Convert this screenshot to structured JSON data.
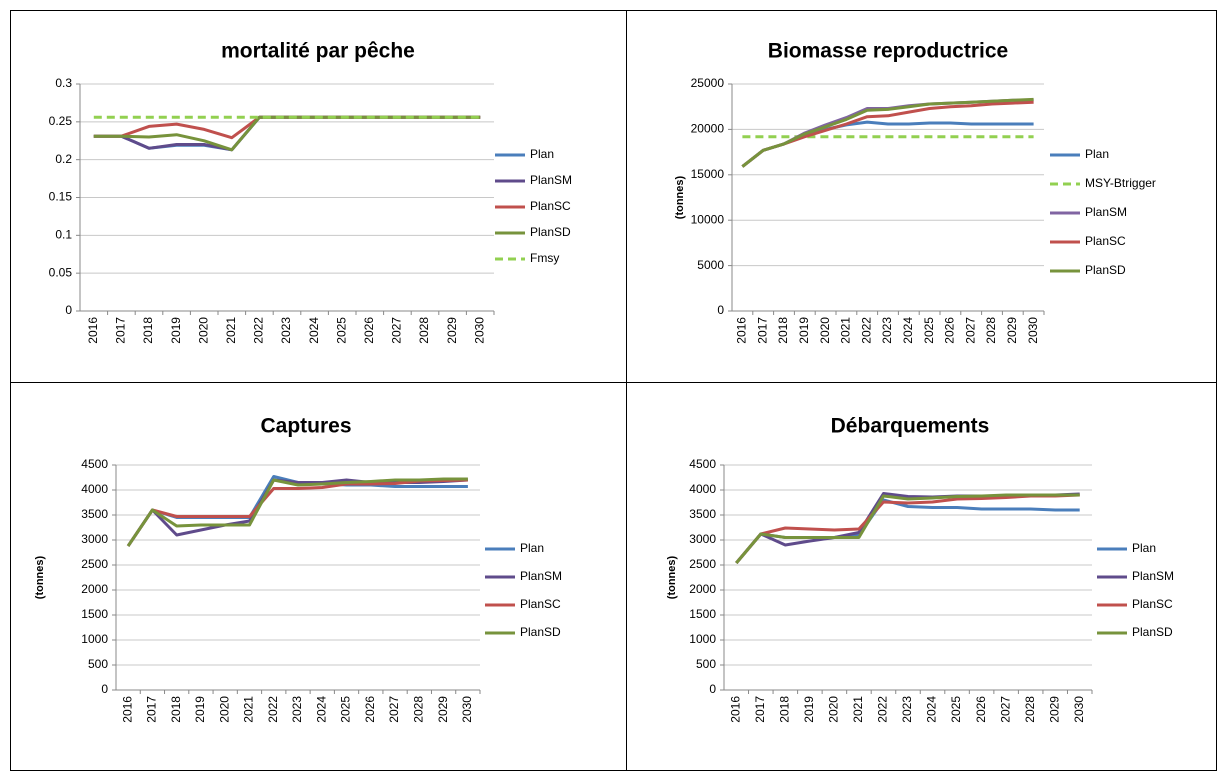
{
  "chart_data": [
    {
      "type": "line",
      "title": "mortalité par pêche",
      "categories": [
        "2016",
        "2017",
        "2018",
        "2019",
        "2020",
        "2021",
        "2022",
        "2023",
        "2024",
        "2025",
        "2026",
        "2027",
        "2028",
        "2029",
        "2030"
      ],
      "ylim": [
        0,
        0.3
      ],
      "yticks": [
        0,
        0.05,
        0.1,
        0.15,
        0.2,
        0.25,
        0.3
      ],
      "grid": true,
      "legend": "right",
      "series": [
        {
          "name": "Plan",
          "color": "#4a7ebb",
          "values": [
            0.231,
            0.231,
            0.215,
            0.219,
            0.219,
            0.213,
            0.256,
            0.256,
            0.256,
            0.256,
            0.256,
            0.256,
            0.256,
            0.256,
            0.256
          ]
        },
        {
          "name": "PlanSM",
          "color": "#5f4b8b",
          "values": [
            0.231,
            0.231,
            0.215,
            0.22,
            0.22,
            0.213,
            0.256,
            0.256,
            0.256,
            0.256,
            0.256,
            0.256,
            0.256,
            0.256,
            0.256
          ]
        },
        {
          "name": "PlanSC",
          "color": "#c0504d",
          "values": [
            0.231,
            0.231,
            0.244,
            0.247,
            0.24,
            0.229,
            0.256,
            0.256,
            0.256,
            0.256,
            0.256,
            0.256,
            0.256,
            0.256,
            0.256
          ]
        },
        {
          "name": "PlanSD",
          "color": "#77933c",
          "values": [
            0.231,
            0.231,
            0.23,
            0.233,
            0.225,
            0.213,
            0.256,
            0.256,
            0.256,
            0.256,
            0.256,
            0.256,
            0.256,
            0.256,
            0.256
          ]
        },
        {
          "name": "Fmsy",
          "color": "#92d050",
          "dashed": true,
          "values": [
            0.256,
            0.256,
            0.256,
            0.256,
            0.256,
            0.256,
            0.256,
            0.256,
            0.256,
            0.256,
            0.256,
            0.256,
            0.256,
            0.256,
            0.256
          ]
        }
      ]
    },
    {
      "type": "line",
      "title": "Biomasse reproductrice",
      "y_label": "(tonnes)",
      "categories": [
        "2016",
        "2017",
        "2018",
        "2019",
        "2020",
        "2021",
        "2022",
        "2023",
        "2024",
        "2025",
        "2026",
        "2027",
        "2028",
        "2029",
        "2030"
      ],
      "ylim": [
        0,
        25000
      ],
      "yticks": [
        0,
        5000,
        10000,
        15000,
        20000,
        25000
      ],
      "grid": true,
      "legend": "right",
      "series": [
        {
          "name": "Plan",
          "color": "#4a7ebb",
          "values": [
            15900,
            17700,
            18400,
            19400,
            20000,
            20500,
            20800,
            20600,
            20600,
            20700,
            20700,
            20600,
            20600,
            20600,
            20600
          ]
        },
        {
          "name": "MSY-Btrigger",
          "color": "#92d050",
          "dashed": true,
          "values": [
            19200,
            19200,
            19200,
            19200,
            19200,
            19200,
            19200,
            19200,
            19200,
            19200,
            19200,
            19200,
            19200,
            19200,
            19200
          ]
        },
        {
          "name": "PlanSM",
          "color": "#8064a2",
          "values": [
            15900,
            17700,
            18400,
            19600,
            20500,
            21300,
            22300,
            22300,
            22600,
            22800,
            22900,
            23000,
            23100,
            23200,
            23200
          ]
        },
        {
          "name": "PlanSC",
          "color": "#c0504d",
          "values": [
            15900,
            17700,
            18400,
            19200,
            19900,
            20600,
            21400,
            21500,
            21900,
            22300,
            22500,
            22600,
            22800,
            22900,
            23000
          ]
        },
        {
          "name": "PlanSD",
          "color": "#77933c",
          "values": [
            15900,
            17700,
            18400,
            19500,
            20300,
            21100,
            22100,
            22200,
            22500,
            22800,
            22900,
            23000,
            23100,
            23200,
            23300
          ]
        }
      ]
    },
    {
      "type": "line",
      "title": "Captures",
      "y_label": "(tonnes)",
      "categories": [
        "2016",
        "2017",
        "2018",
        "2019",
        "2020",
        "2021",
        "2022",
        "2023",
        "2024",
        "2025",
        "2026",
        "2027",
        "2028",
        "2029",
        "2030"
      ],
      "ylim": [
        0,
        4500
      ],
      "yticks": [
        0,
        500,
        1000,
        1500,
        2000,
        2500,
        3000,
        3500,
        4000,
        4500
      ],
      "grid": true,
      "legend": "right",
      "series": [
        {
          "name": "Plan",
          "color": "#4a7ebb",
          "values": [
            2880,
            3600,
            3450,
            3450,
            3450,
            3450,
            4270,
            4150,
            4130,
            4100,
            4100,
            4070,
            4070,
            4070,
            4070
          ]
        },
        {
          "name": "PlanSM",
          "color": "#5f4b8b",
          "values": [
            2880,
            3600,
            3100,
            3200,
            3300,
            3380,
            4200,
            4150,
            4150,
            4200,
            4150,
            4150,
            4150,
            4170,
            4200
          ]
        },
        {
          "name": "PlanSC",
          "color": "#c0504d",
          "values": [
            2880,
            3600,
            3470,
            3470,
            3470,
            3470,
            4030,
            4030,
            4050,
            4120,
            4120,
            4130,
            4180,
            4190,
            4200
          ]
        },
        {
          "name": "PlanSD",
          "color": "#77933c",
          "values": [
            2880,
            3600,
            3280,
            3300,
            3300,
            3300,
            4200,
            4100,
            4120,
            4150,
            4170,
            4200,
            4200,
            4220,
            4220
          ]
        }
      ]
    },
    {
      "type": "line",
      "title": "Débarquements",
      "y_label": "(tonnes)",
      "categories": [
        "2016",
        "2017",
        "2018",
        "2019",
        "2020",
        "2021",
        "2022",
        "2023",
        "2024",
        "2025",
        "2026",
        "2027",
        "2028",
        "2029",
        "2030"
      ],
      "ylim": [
        0,
        4500
      ],
      "yticks": [
        0,
        500,
        1000,
        1500,
        2000,
        2500,
        3000,
        3500,
        4000,
        4500
      ],
      "grid": true,
      "legend": "right",
      "series": [
        {
          "name": "Plan",
          "color": "#4a7ebb",
          "values": [
            2540,
            3120,
            3050,
            3050,
            3050,
            3100,
            3800,
            3670,
            3650,
            3650,
            3620,
            3620,
            3620,
            3600,
            3600
          ]
        },
        {
          "name": "PlanSM",
          "color": "#5f4b8b",
          "values": [
            2540,
            3120,
            2900,
            2980,
            3050,
            3150,
            3930,
            3870,
            3860,
            3880,
            3880,
            3880,
            3900,
            3900,
            3920
          ]
        },
        {
          "name": "PlanSC",
          "color": "#c0504d",
          "values": [
            2540,
            3120,
            3240,
            3220,
            3200,
            3220,
            3760,
            3740,
            3760,
            3820,
            3830,
            3850,
            3880,
            3880,
            3900
          ]
        },
        {
          "name": "PlanSD",
          "color": "#77933c",
          "values": [
            2540,
            3120,
            3050,
            3050,
            3050,
            3050,
            3880,
            3820,
            3840,
            3870,
            3880,
            3900,
            3900,
            3900,
            3900
          ]
        }
      ]
    }
  ]
}
